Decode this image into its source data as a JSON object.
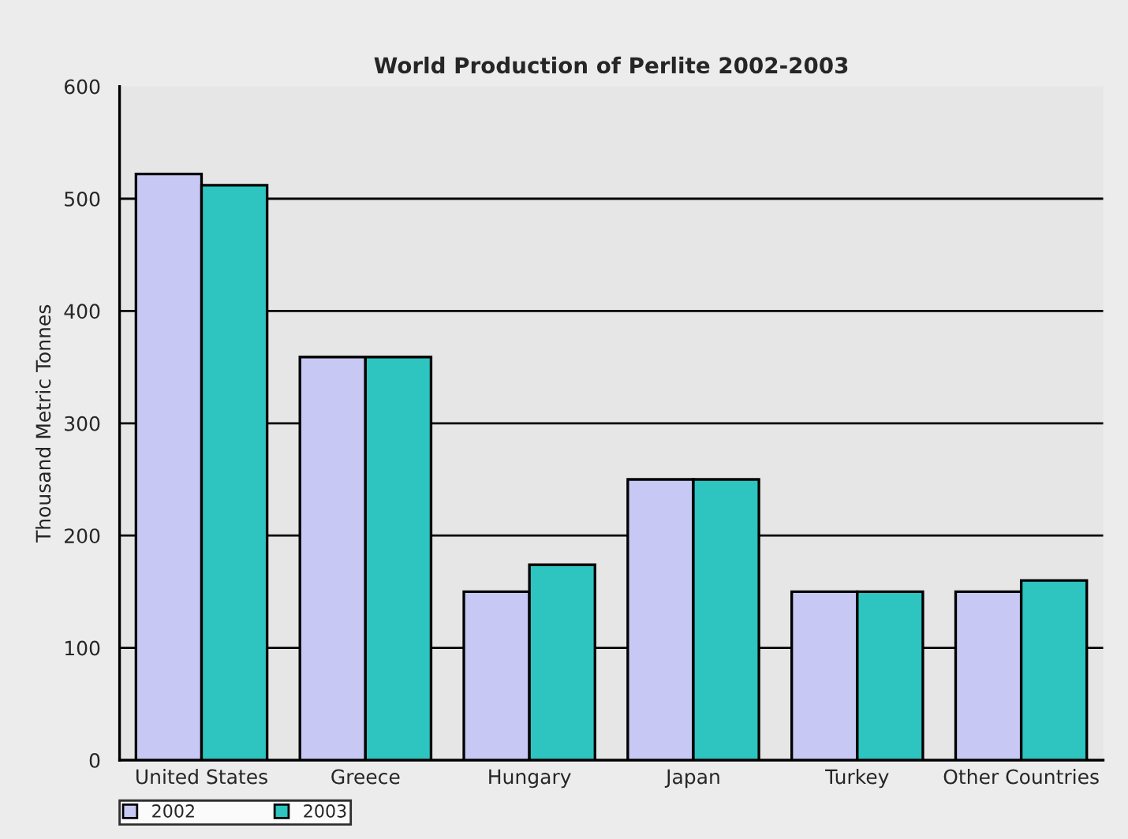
{
  "chart_data": {
    "type": "bar",
    "title": "World Production of Perlite 2002-2003",
    "ylabel": "Thousand Metric Tonnes",
    "categories": [
      "United States",
      "Greece",
      "Hungary",
      "Japan",
      "Turkey",
      "Other Countries"
    ],
    "series": [
      {
        "name": "2002",
        "color": "#c8c8f4",
        "values": [
          522,
          359,
          150,
          250,
          150,
          150
        ]
      },
      {
        "name": "2003",
        "color": "#2ec4c0",
        "values": [
          512,
          359,
          174,
          250,
          150,
          160
        ]
      }
    ],
    "ylim": [
      0,
      600
    ],
    "yticks": [
      0,
      100,
      200,
      300,
      400,
      500,
      600
    ],
    "grid": "y",
    "legend": "bottom left"
  }
}
